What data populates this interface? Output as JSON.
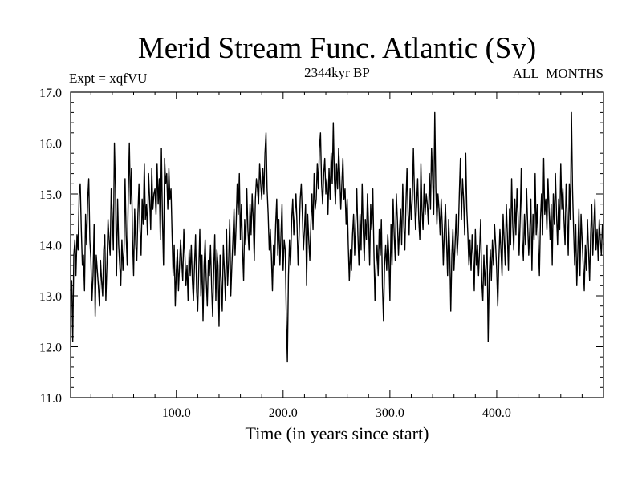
{
  "chart_data": {
    "type": "line",
    "title": "Merid Stream Func. Atlantic (Sv)",
    "subtitle_left": "Expt = xqfVU",
    "subtitle_center": "2344kyr BP",
    "subtitle_right": "ALL_MONTHS",
    "xlabel": "Time (in years since start)",
    "ylabel": "",
    "xlim": [
      1,
      500
    ],
    "ylim": [
      11.0,
      17.0
    ],
    "x_ticks": [
      100,
      200,
      300,
      400
    ],
    "x_tick_labels": [
      "100.0",
      "200.0",
      "300.0",
      "400.0"
    ],
    "y_ticks": [
      11,
      12,
      13,
      14,
      15,
      16,
      17
    ],
    "y_tick_labels": [
      "11.0",
      "12.0",
      "13.0",
      "14.0",
      "15.0",
      "16.0",
      "17.0"
    ],
    "grid": false,
    "series": [
      {
        "name": "Merid Stream Func. Atlantic",
        "color": "#000000",
        "x_start": 1,
        "x_step": 1,
        "values": [
          13.1,
          13.3,
          12.1,
          13.8,
          14.1,
          13.4,
          14.2,
          13.9,
          15.0,
          15.2,
          14.3,
          13.6,
          13.8,
          13.1,
          14.6,
          14.0,
          14.9,
          15.3,
          14.1,
          13.7,
          12.9,
          13.4,
          14.4,
          12.6,
          13.8,
          13.5,
          13.2,
          12.8,
          13.7,
          13.3,
          13.0,
          13.9,
          14.2,
          12.9,
          13.6,
          14.5,
          14.1,
          13.8,
          15.1,
          14.6,
          13.9,
          16.0,
          15.1,
          13.4,
          14.9,
          14.0,
          13.6,
          13.2,
          14.1,
          13.5,
          13.9,
          15.3,
          14.2,
          13.6,
          15.0,
          16.0,
          14.8,
          15.5,
          14.1,
          13.4,
          14.7,
          14.0,
          13.7,
          14.6,
          15.2,
          14.3,
          13.8,
          14.9,
          14.4,
          15.6,
          14.5,
          14.8,
          14.2,
          15.4,
          14.9,
          14.3,
          15.5,
          14.7,
          15.0,
          15.1,
          14.6,
          15.6,
          14.8,
          15.3,
          14.1,
          15.9,
          14.5,
          13.6,
          15.7,
          15.2,
          15.4,
          14.7,
          15.5,
          14.9,
          15.1,
          14.2,
          13.4,
          14.0,
          12.8,
          13.5,
          13.9,
          13.1,
          13.6,
          14.1,
          13.7,
          13.3,
          14.3,
          13.8,
          13.2,
          13.6,
          12.9,
          13.9,
          13.4,
          14.0,
          13.3,
          12.9,
          13.6,
          14.2,
          13.1,
          12.7,
          13.5,
          14.3,
          13.0,
          13.8,
          12.5,
          13.6,
          14.1,
          13.3,
          12.8,
          13.7,
          13.4,
          14.0,
          13.2,
          12.6,
          13.5,
          14.2,
          12.9,
          13.9,
          13.6,
          12.4,
          13.8,
          13.3,
          12.7,
          14.0,
          13.5,
          12.9,
          14.3,
          13.2,
          13.7,
          14.5,
          13.0,
          13.6,
          14.1,
          14.7,
          13.8,
          14.4,
          15.2,
          14.6,
          15.4,
          14.1,
          14.8,
          13.9,
          13.3,
          14.5,
          14.0,
          15.1,
          14.3,
          13.9,
          14.8,
          14.2,
          15.0,
          14.5,
          13.7,
          14.9,
          15.3,
          15.1,
          14.8,
          15.6,
          15.2,
          14.9,
          15.5,
          15.0,
          15.8,
          16.2,
          15.1,
          14.6,
          13.9,
          14.3,
          13.8,
          13.1,
          14.0,
          13.6,
          14.4,
          14.9,
          13.8,
          14.5,
          13.6,
          14.2,
          14.8,
          13.5,
          14.1,
          13.9,
          12.6,
          11.7,
          13.4,
          14.1,
          13.6,
          14.5,
          14.9,
          14.2,
          14.6,
          15.0,
          14.4,
          13.6,
          14.2,
          14.9,
          15.2,
          14.6,
          13.9,
          14.3,
          14.8,
          13.2,
          14.6,
          14.1,
          13.7,
          14.4,
          15.0,
          14.3,
          15.4,
          14.7,
          14.9,
          15.6,
          15.1,
          15.9,
          16.2,
          15.2,
          14.8,
          15.4,
          15.7,
          15.0,
          15.3,
          14.6,
          15.5,
          14.9,
          15.8,
          15.2,
          16.4,
          15.3,
          14.8,
          15.6,
          15.1,
          15.9,
          15.4,
          14.7,
          15.2,
          15.7,
          14.9,
          15.1,
          14.4,
          14.9,
          14.0,
          13.3,
          13.9,
          13.5,
          14.2,
          14.6,
          13.8,
          14.4,
          15.1,
          14.2,
          13.6,
          14.6,
          13.9,
          15.2,
          14.3,
          13.7,
          14.5,
          14.1,
          15.0,
          14.4,
          13.6,
          14.8,
          14.3,
          15.1,
          13.9,
          12.9,
          13.6,
          14.0,
          13.4,
          14.3,
          13.8,
          14.5,
          13.2,
          12.5,
          13.6,
          14.0,
          13.5,
          14.2,
          13.8,
          12.9,
          14.4,
          13.6,
          14.9,
          14.2,
          13.7,
          15.0,
          14.5,
          13.8,
          14.3,
          14.7,
          14.0,
          15.2,
          14.4,
          13.9,
          14.8,
          15.5,
          14.6,
          14.2,
          15.1,
          14.5,
          14.9,
          15.9,
          15.0,
          14.3,
          14.8,
          15.3,
          14.5,
          14.1,
          15.6,
          14.7,
          14.3,
          15.2,
          14.6,
          15.0,
          14.8,
          14.4,
          15.4,
          14.7,
          15.9,
          15.3,
          14.6,
          16.6,
          15.1,
          14.4,
          15.0,
          14.7,
          14.2,
          14.9,
          14.4,
          13.6,
          14.3,
          14.8,
          14.1,
          13.4,
          14.5,
          13.9,
          12.7,
          13.8,
          14.3,
          13.5,
          14.0,
          14.6,
          13.8,
          14.2,
          15.0,
          15.7,
          14.5,
          15.3,
          14.9,
          14.2,
          15.8,
          14.7,
          14.2,
          13.6,
          14.1,
          13.5,
          14.2,
          13.8,
          13.1,
          14.3,
          13.6,
          14.0,
          13.4,
          13.9,
          14.5,
          13.3,
          12.9,
          13.8,
          13.2,
          13.6,
          14.0,
          12.1,
          13.4,
          13.9,
          13.3,
          14.1,
          13.6,
          14.4,
          14.0,
          13.5,
          12.8,
          13.7,
          14.3,
          13.9,
          13.4,
          14.6,
          14.1,
          13.6,
          14.8,
          14.2,
          13.5,
          14.7,
          14.0,
          15.3,
          14.4,
          13.9,
          14.9,
          14.2,
          15.1,
          14.6,
          13.8,
          14.5,
          15.5,
          14.1,
          13.7,
          14.6,
          14.0,
          15.1,
          14.4,
          13.8,
          14.3,
          14.9,
          13.5,
          14.6,
          14.1,
          15.4,
          14.2,
          14.8,
          14.0,
          13.4,
          14.5,
          15.0,
          14.2,
          15.7,
          14.6,
          14.9,
          14.3,
          15.3,
          14.7,
          14.1,
          14.8,
          13.6,
          15.0,
          14.4,
          15.4,
          14.6,
          14.0,
          14.9,
          14.3,
          15.6,
          14.7,
          15.1,
          14.5,
          14.0,
          15.2,
          14.6,
          13.8,
          15.2,
          14.5,
          16.6,
          15.1,
          14.3,
          13.6,
          14.4,
          13.2,
          13.9,
          14.7,
          13.4,
          14.6,
          14.1,
          13.6,
          13.1,
          14.0,
          13.5,
          14.5,
          13.9,
          13.3,
          14.2,
          14.8,
          13.8,
          14.4,
          14.9,
          13.9,
          14.3,
          13.7,
          14.5,
          14.1,
          13.8,
          14.4,
          14.0
        ]
      }
    ]
  }
}
